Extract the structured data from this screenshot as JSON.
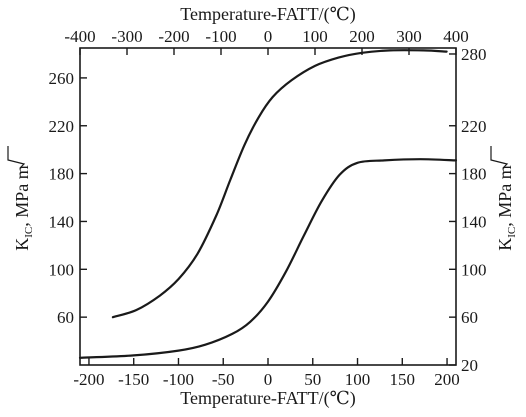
{
  "chart_data": {
    "type": "line",
    "top_xlabel": "Temperature-FATT/(℃)",
    "bottom_xlabel": "Temperature-FATT/(℃)",
    "left_ylabel": "K",
    "left_ylabel_sub": "IC",
    "left_ylabel_unit": ", MPa ",
    "left_ylabel_root": "m",
    "right_ylabel": "K",
    "right_ylabel_sub": "IC",
    "right_ylabel_unit": ", MPa ",
    "right_ylabel_root": "m",
    "top_x": {
      "range": [
        -400,
        400
      ],
      "ticks": [
        -400,
        -300,
        -200,
        -100,
        0,
        100,
        200,
        300,
        400
      ]
    },
    "bottom_x": {
      "range": [
        -210,
        210
      ],
      "ticks": [
        -200,
        -150,
        -100,
        -50,
        0,
        50,
        100,
        150,
        200
      ]
    },
    "left_y": {
      "range": [
        20,
        285
      ],
      "ticks": [
        60,
        100,
        140,
        180,
        220,
        260
      ]
    },
    "right_y": {
      "range": [
        20,
        285
      ],
      "ticks": [
        20,
        60,
        100,
        140,
        180,
        220,
        280
      ]
    },
    "grid": false,
    "series": [
      {
        "x_axis": "top",
        "y_axis": "left",
        "points": [
          [
            -330,
            60
          ],
          [
            -280,
            66
          ],
          [
            -230,
            78
          ],
          [
            -190,
            92
          ],
          [
            -150,
            113
          ],
          [
            -110,
            145
          ],
          [
            -80,
            175
          ],
          [
            -50,
            204
          ],
          [
            -20,
            227
          ],
          [
            10,
            244
          ],
          [
            50,
            258
          ],
          [
            100,
            270
          ],
          [
            150,
            277
          ],
          [
            200,
            281
          ],
          [
            260,
            283
          ],
          [
            330,
            283
          ],
          [
            380,
            282
          ]
        ]
      },
      {
        "x_axis": "bottom",
        "y_axis": "right",
        "points": [
          [
            -210,
            26
          ],
          [
            -150,
            28
          ],
          [
            -100,
            32
          ],
          [
            -70,
            37
          ],
          [
            -40,
            46
          ],
          [
            -20,
            56
          ],
          [
            0,
            73
          ],
          [
            20,
            98
          ],
          [
            40,
            128
          ],
          [
            60,
            157
          ],
          [
            80,
            179
          ],
          [
            100,
            189
          ],
          [
            130,
            191
          ],
          [
            170,
            192
          ],
          [
            210,
            191
          ]
        ]
      }
    ]
  }
}
